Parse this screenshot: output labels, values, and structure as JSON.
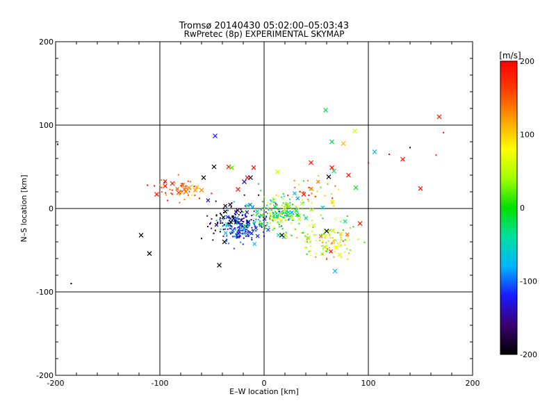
{
  "chart_data": {
    "type": "scatter",
    "title": "Tromsø 20140430 05:02:00–05:03:43",
    "subtitle": "RwPretec (8p) EXPERIMENTAL SKYMAP",
    "xlabel": "E–W location [km]",
    "ylabel": "N–S location [km]",
    "xlim": [
      -200,
      200
    ],
    "ylim": [
      -200,
      200
    ],
    "x_ticks": [
      -200,
      -100,
      0,
      100,
      200
    ],
    "y_ticks": [
      -200,
      -100,
      0,
      100,
      200
    ],
    "x_tick_labels": [
      "-200",
      "-100",
      "0",
      "100",
      "200"
    ],
    "y_tick_labels": [
      "-200",
      "-100",
      "0",
      "100",
      "200"
    ],
    "grid": true,
    "colorbar": {
      "label": "[m/s]",
      "range": [
        -200,
        200
      ],
      "tick_values": [
        200,
        100,
        0,
        -100,
        -200
      ],
      "tick_labels": [
        "200",
        "100",
        "0",
        "-100",
        "-200"
      ],
      "colormap_stops": [
        "#000000",
        "#3a0070",
        "#1a1aff",
        "#00b4ff",
        "#00e0a0",
        "#00e000",
        "#a0ff00",
        "#ffff00",
        "#ffa000",
        "#ff4000",
        "#ff0000"
      ]
    },
    "large_markers": [
      {
        "x": 59,
        "y": 118,
        "v": -20
      },
      {
        "x": 87,
        "y": 93,
        "v": 60
      },
      {
        "x": 76,
        "y": 78,
        "v": 110
      },
      {
        "x": 65,
        "y": 80,
        "v": -20
      },
      {
        "x": 106,
        "y": 68,
        "v": -70
      },
      {
        "x": 168,
        "y": 110,
        "v": 190
      },
      {
        "x": 133,
        "y": 59,
        "v": 180
      },
      {
        "x": 150,
        "y": 24,
        "v": 190
      },
      {
        "x": -47,
        "y": 87,
        "v": -120
      },
      {
        "x": -48,
        "y": 50,
        "v": -200
      },
      {
        "x": -34,
        "y": 50,
        "v": 190
      },
      {
        "x": -31,
        "y": 49,
        "v": 20
      },
      {
        "x": -10,
        "y": 49,
        "v": 190
      },
      {
        "x": -16,
        "y": 37,
        "v": 190
      },
      {
        "x": -19,
        "y": 32,
        "v": -150
      },
      {
        "x": -25,
        "y": 23,
        "v": 190
      },
      {
        "x": -13,
        "y": 37,
        "v": -180
      },
      {
        "x": 45,
        "y": 55,
        "v": 190
      },
      {
        "x": 65,
        "y": 49,
        "v": 190
      },
      {
        "x": 62,
        "y": 38,
        "v": -200
      },
      {
        "x": 67,
        "y": 45,
        "v": -20
      },
      {
        "x": 81,
        "y": 40,
        "v": 190
      },
      {
        "x": 88,
        "y": 25,
        "v": -10
      },
      {
        "x": -103,
        "y": 17,
        "v": 190
      },
      {
        "x": -95,
        "y": 27,
        "v": 180
      },
      {
        "x": -88,
        "y": 30,
        "v": 190
      },
      {
        "x": -82,
        "y": 19,
        "v": 160
      },
      {
        "x": -78,
        "y": 28,
        "v": 150
      },
      {
        "x": -75,
        "y": 20,
        "v": 140
      },
      {
        "x": -72,
        "y": 25,
        "v": 130
      },
      {
        "x": -66,
        "y": 22,
        "v": 120
      },
      {
        "x": -60,
        "y": 22,
        "v": 130
      },
      {
        "x": -118,
        "y": -32,
        "v": -200
      },
      {
        "x": -110,
        "y": -54,
        "v": -200
      },
      {
        "x": -43,
        "y": -68,
        "v": -200
      },
      {
        "x": -38,
        "y": -40,
        "v": -200
      },
      {
        "x": 68,
        "y": -75,
        "v": -80
      },
      {
        "x": 60,
        "y": -27,
        "v": -200
      },
      {
        "x": 92,
        "y": -18,
        "v": 190
      },
      {
        "x": 13,
        "y": 44,
        "v": 60
      },
      {
        "x": 38,
        "y": 17,
        "v": 190
      },
      {
        "x": -58,
        "y": 37,
        "v": -200
      },
      {
        "x": 17,
        "y": -32,
        "v": -200
      }
    ],
    "small_points": [
      {
        "x": -185,
        "y": -90,
        "v": -200
      },
      {
        "x": 140,
        "y": 73,
        "v": -200
      },
      {
        "x": 172,
        "y": 91,
        "v": 190
      },
      {
        "x": 165,
        "y": 64,
        "v": 190
      },
      {
        "x": 120,
        "y": 65,
        "v": 190
      },
      {
        "x": -60,
        "y": -36,
        "v": -200
      },
      {
        "x": -198,
        "y": 77,
        "v": -200
      },
      {
        "x": 100,
        "y": 55,
        "v": 190
      }
    ],
    "clusters": [
      {
        "cx": -22,
        "cy": -22,
        "sx": 11,
        "sy": 8,
        "n": 200,
        "vmu": -110,
        "vsd": 35
      },
      {
        "cx": 12,
        "cy": -5,
        "sx": 13,
        "sy": 11,
        "n": 200,
        "vmu": -5,
        "vsd": 55
      },
      {
        "cx": 62,
        "cy": -38,
        "sx": 16,
        "sy": 12,
        "n": 120,
        "vmu": 65,
        "vsd": 45
      },
      {
        "cx": -35,
        "cy": -10,
        "sx": 12,
        "sy": 15,
        "n": 60,
        "vmu": -180,
        "vsd": 25
      },
      {
        "cx": -80,
        "cy": 22,
        "sx": 12,
        "sy": 7,
        "n": 50,
        "vmu": 145,
        "vsd": 35
      },
      {
        "cx": 45,
        "cy": 15,
        "sx": 16,
        "sy": 10,
        "n": 40,
        "vmu": 130,
        "vsd": 50
      }
    ]
  }
}
